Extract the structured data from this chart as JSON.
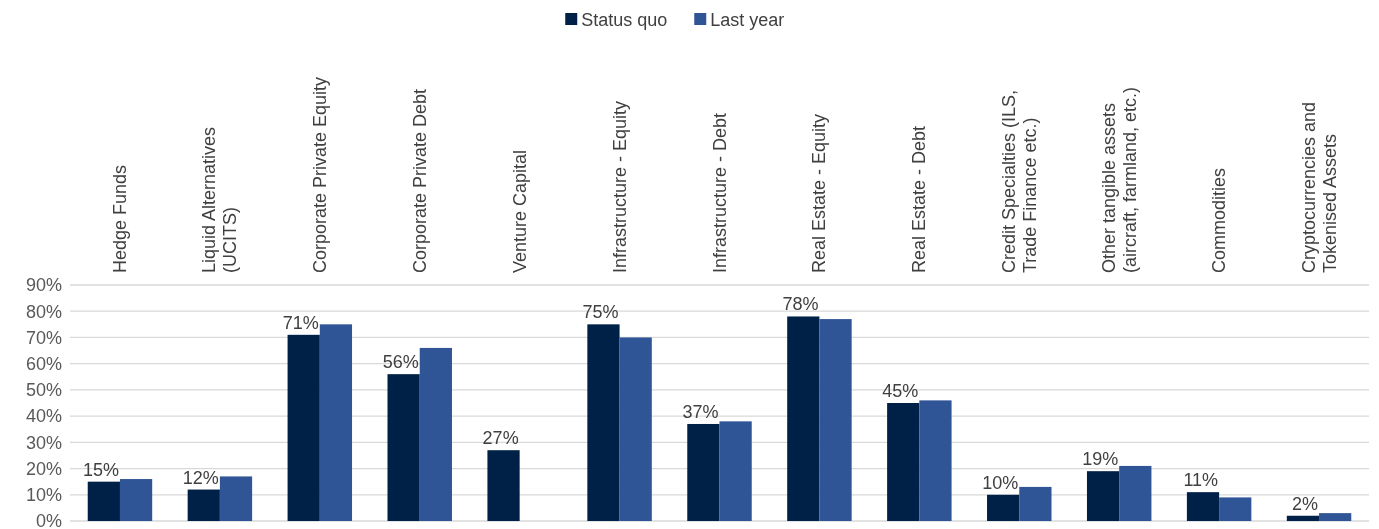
{
  "chart_data": {
    "type": "bar",
    "categories": [
      "Hedge Funds",
      "Liquid Alternatives\n(UCITS)",
      "Corporate Private Equity",
      "Corporate Private Debt",
      "Venture Capital",
      "Infrastructure - Equity",
      "Infrastructure - Debt",
      "Real Estate - Equity",
      "Real Estate - Debt",
      "Credit Specialties (ILS,\nTrade Finance etc.)",
      "Other tangible assets\n(aircraft, farmland, etc.)",
      "Commodities",
      "Cryptocurrencies and\nTokenised Assets"
    ],
    "series": [
      {
        "name": "Status quo",
        "color": "#002147",
        "values": [
          15,
          12,
          71,
          56,
          27,
          75,
          37,
          78,
          45,
          10,
          19,
          11,
          2
        ],
        "value_labels": [
          "15%",
          "12%",
          "71%",
          "56%",
          "27%",
          "75%",
          "37%",
          "78%",
          "45%",
          "10%",
          "19%",
          "11%",
          "2%"
        ]
      },
      {
        "name": "Last year",
        "color": "#2f5597",
        "values": [
          16,
          17,
          75,
          66,
          null,
          70,
          38,
          77,
          46,
          13,
          21,
          9,
          3
        ]
      }
    ],
    "ylim": [
      0,
      90
    ],
    "yticks": [
      {
        "value": 0,
        "label": "0%"
      },
      {
        "value": 10,
        "label": "10%"
      },
      {
        "value": 20,
        "label": "20%"
      },
      {
        "value": 30,
        "label": "30%"
      },
      {
        "value": 40,
        "label": "40%"
      },
      {
        "value": 50,
        "label": "50%"
      },
      {
        "value": 60,
        "label": "60%"
      },
      {
        "value": 70,
        "label": "70%"
      },
      {
        "value": 80,
        "label": "80%"
      },
      {
        "value": 90,
        "label": "90%"
      }
    ],
    "grid": "y",
    "legend": "top"
  }
}
